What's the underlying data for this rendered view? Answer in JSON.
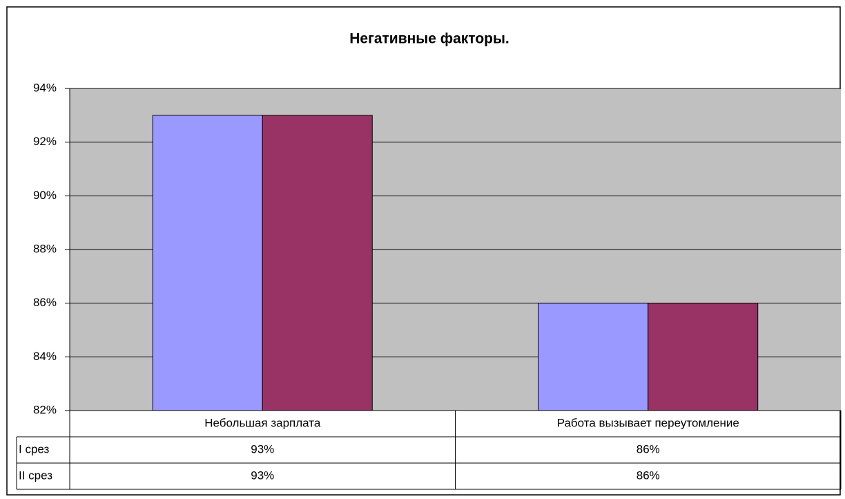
{
  "chart_data": {
    "type": "bar",
    "title": "Негативные факторы.",
    "categories": [
      "Небольшая зарплата",
      "Работа вызывает переутомление"
    ],
    "series": [
      {
        "name": "I срез",
        "color": "#9999ff",
        "values": [
          93,
          86
        ],
        "value_labels": [
          "93%",
          "86%"
        ]
      },
      {
        "name": "II срез",
        "color": "#993366",
        "values": [
          93,
          86
        ],
        "value_labels": [
          "93%",
          "86%"
        ]
      }
    ],
    "ylim": [
      82,
      94
    ],
    "yticks": [
      {
        "value": 82,
        "label": "82%"
      },
      {
        "value": 84,
        "label": "84%"
      },
      {
        "value": 86,
        "label": "86%"
      },
      {
        "value": 88,
        "label": "88%"
      },
      {
        "value": 90,
        "label": "90%"
      },
      {
        "value": 92,
        "label": "92%"
      },
      {
        "value": 94,
        "label": "94%"
      }
    ],
    "grid": true,
    "data_table": true
  }
}
